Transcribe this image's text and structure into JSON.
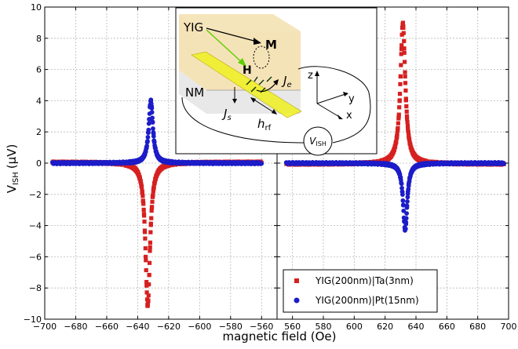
{
  "chart_data": {
    "type": "scatter",
    "xlabel": "magnetic field (Oe)",
    "ylabel_main": "V",
    "ylabel_sub": "ISH",
    "ylabel_unit": "(μV)",
    "ylim": [
      -10,
      10
    ],
    "yticks": [
      "−10",
      "−8",
      "−6",
      "−4",
      "−2",
      "0",
      "2",
      "4",
      "6",
      "8",
      "10"
    ],
    "yticks_val": [
      -10,
      -8,
      -6,
      -4,
      -2,
      0,
      2,
      4,
      6,
      8,
      10
    ],
    "grid": true,
    "legend_position": "bottom-right",
    "panels": [
      {
        "name": "negative-field",
        "xlim": [
          -700,
          -550
        ],
        "xticks_val": [
          -700,
          -680,
          -660,
          -640,
          -620,
          -600,
          -580,
          -560
        ],
        "xticks": [
          "−700",
          "−680",
          "−660",
          "−640",
          "−620",
          "−600",
          "−580",
          "−560"
        ],
        "series": [
          {
            "name": "YIG(200nm)|Ta(3nm)",
            "color": "#d62020",
            "marker": "square",
            "x0": -695,
            "x1": -560,
            "center": -633.5,
            "amplitude": -9.2,
            "width": 1.8,
            "baseline": 0.05,
            "order": 0
          },
          {
            "name": "YIG(200nm)|Pt(15nm)",
            "color": "#1c1cc8",
            "marker": "circle",
            "x0": -695,
            "x1": -560,
            "center": -631.5,
            "amplitude": 4.0,
            "width": 1.6,
            "baseline": 0.0,
            "order": 1
          }
        ]
      },
      {
        "name": "positive-field",
        "xlim": [
          550,
          700
        ],
        "xticks_val": [
          560,
          580,
          600,
          620,
          640,
          660,
          680,
          700
        ],
        "xticks": [
          "560",
          "580",
          "600",
          "620",
          "640",
          "660",
          "680",
          "700"
        ],
        "series": [
          {
            "name": "YIG(200nm)|Ta(3nm)",
            "color": "#d62020",
            "marker": "square",
            "x0": 556,
            "x1": 697,
            "center": 631.5,
            "amplitude": 9.0,
            "width": 1.9,
            "baseline": -0.05,
            "order": 0
          },
          {
            "name": "YIG(200nm)|Pt(15nm)",
            "color": "#1c1cc8",
            "marker": "circle",
            "x0": 556,
            "x1": 697,
            "center": 633.0,
            "amplitude": -4.3,
            "width": 1.6,
            "baseline": 0.0,
            "order": 1
          }
        ]
      }
    ],
    "legend": [
      {
        "label": "YIG(200nm)|Ta(3nm)",
        "color": "#d62020",
        "marker": "square"
      },
      {
        "label": "YIG(200nm)|Pt(15nm)",
        "color": "#1c1cc8",
        "marker": "circle"
      }
    ]
  },
  "inset": {
    "yig": "YIG",
    "nm": "NM",
    "M": "M",
    "H": "H",
    "Je": "J",
    "Je_sub": "e",
    "Js": "J",
    "Js_sub": "s",
    "hrf": "h",
    "hrf_sub": "rf",
    "V": "V",
    "V_sub": "ISH",
    "z": "z",
    "y": "y",
    "x": "x",
    "color_yig": "#f4e2b4",
    "color_nm": "#e8e8e8",
    "color_strip": "#f0f020",
    "color_H": "#5ed000",
    "color_Js": "#1c1cc8"
  }
}
